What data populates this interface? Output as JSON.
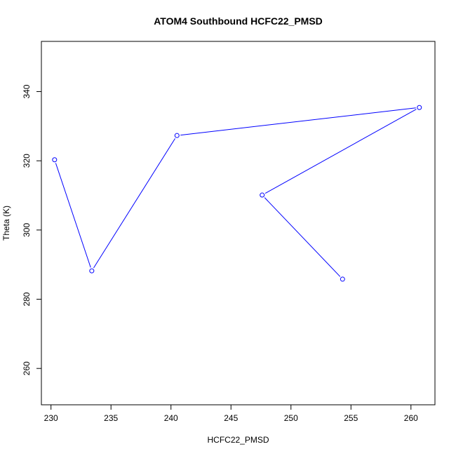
{
  "chart_data": {
    "type": "line",
    "title": "ATOM4 Southbound HCFC22_PMSD",
    "xlabel": "HCFC22_PMSD",
    "ylabel": "Theta (K)",
    "xlim": [
      229.2,
      262.0
    ],
    "ylim": [
      249.5,
      354.5
    ],
    "xticks": [
      230,
      235,
      240,
      245,
      250,
      255,
      260
    ],
    "yticks": [
      260,
      280,
      300,
      320,
      340
    ],
    "grid": false,
    "series": [
      {
        "color": "#0000ff",
        "marker": "open-circle",
        "points": [
          {
            "x": 230.3,
            "y": 320.3
          },
          {
            "x": 233.4,
            "y": 288.2
          },
          {
            "x": 240.5,
            "y": 327.3
          },
          {
            "x": 260.7,
            "y": 335.4
          },
          {
            "x": 247.6,
            "y": 310.1
          },
          {
            "x": 254.3,
            "y": 285.8
          }
        ]
      }
    ]
  }
}
